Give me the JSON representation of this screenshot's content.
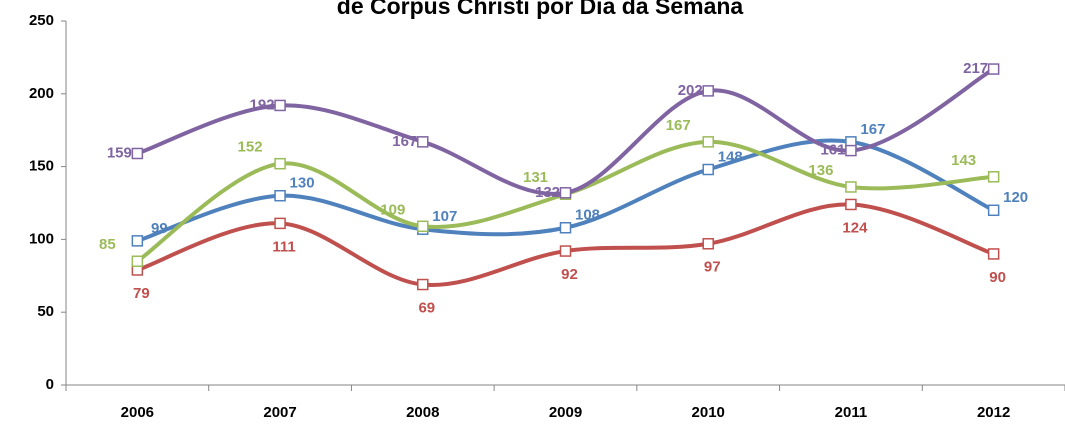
{
  "chart_data": {
    "type": "line",
    "title": "de Corpus Christi por Dia da Semana",
    "categories": [
      "2006",
      "2007",
      "2008",
      "2009",
      "2010",
      "2011",
      "2012"
    ],
    "series": [
      {
        "color": "#4f81bd",
        "values": [
          99,
          130,
          107,
          108,
          148,
          167,
          120
        ]
      },
      {
        "color": "#c0504d",
        "values": [
          79,
          111,
          69,
          92,
          97,
          124,
          90
        ]
      },
      {
        "color": "#9bbb59",
        "values": [
          85,
          152,
          109,
          131,
          167,
          136,
          143
        ]
      },
      {
        "color": "#8064a2",
        "values": [
          159,
          192,
          167,
          132,
          202,
          161,
          217
        ]
      }
    ],
    "ylim": [
      0,
      250
    ],
    "yticks": [
      0,
      50,
      100,
      150,
      200,
      250
    ],
    "grid": false
  }
}
